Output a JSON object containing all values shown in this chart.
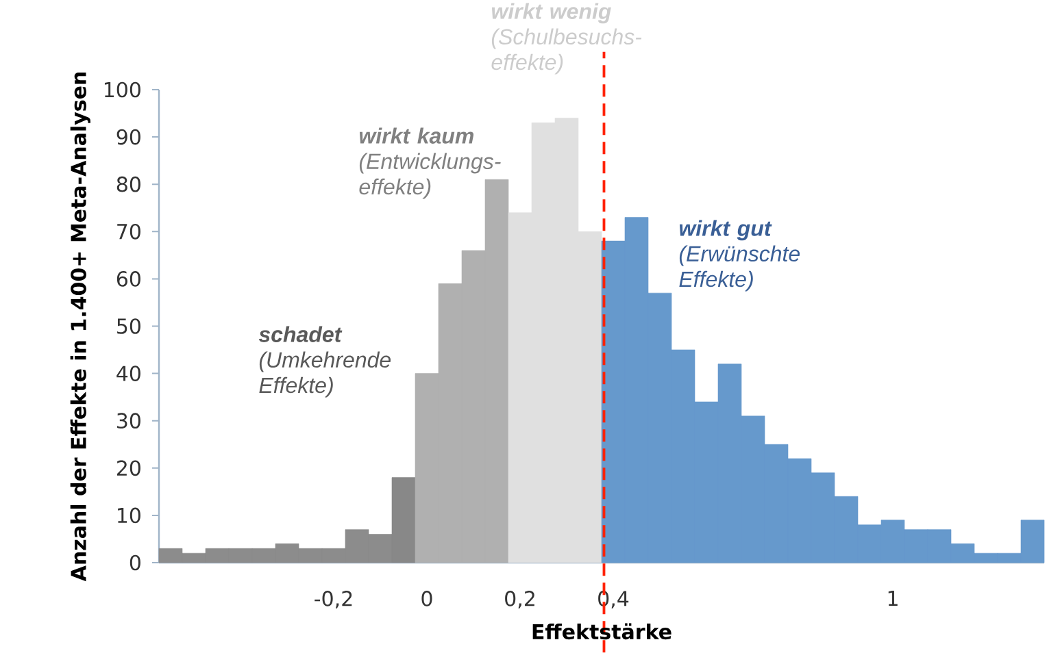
{
  "chart_data": {
    "type": "histogram",
    "xlabel": "Effektstärke",
    "ylabel": "Anzahl der Effekte in 1.400+ Meta-Analysen",
    "bins": [
      -0.575,
      -0.525,
      -0.475,
      -0.425,
      -0.375,
      -0.325,
      -0.275,
      -0.225,
      -0.175,
      -0.125,
      -0.075,
      -0.025,
      0.025,
      0.075,
      0.125,
      0.175,
      0.225,
      0.275,
      0.325,
      0.375,
      0.425,
      0.475,
      0.525,
      0.575,
      0.625,
      0.675,
      0.725,
      0.775,
      0.825,
      0.875,
      0.925,
      0.975,
      1.025,
      1.075,
      1.125,
      1.175,
      1.225,
      1.275,
      1.325
    ],
    "values": [
      3,
      2,
      3,
      3,
      3,
      4,
      3,
      3,
      7,
      6,
      18,
      40,
      59,
      66,
      81,
      74,
      93,
      94,
      70,
      68,
      73,
      57,
      45,
      34,
      42,
      31,
      25,
      22,
      19,
      14,
      8,
      9,
      7,
      7,
      4,
      2,
      2,
      9
    ],
    "colors": [
      "#8c8c8c",
      "#8c8c8c",
      "#8c8c8c",
      "#8c8c8c",
      "#8c8c8c",
      "#8c8c8c",
      "#8c8c8c",
      "#8c8c8c",
      "#8c8c8c",
      "#8c8c8c",
      "#888888",
      "#b0b0b0",
      "#b0b0b0",
      "#b0b0b0",
      "#b0b0b0",
      "#e0e0e0",
      "#e0e0e0",
      "#e0e0e0",
      "#e0e0e0",
      "#6699cc",
      "#6699cc",
      "#6699cc",
      "#6699cc",
      "#6699cc",
      "#6699cc",
      "#6699cc",
      "#6699cc",
      "#6699cc",
      "#6699cc",
      "#6699cc",
      "#6699cc",
      "#6699cc",
      "#6699cc",
      "#6699cc",
      "#6699cc",
      "#6699cc",
      "#6699cc",
      "#6699cc"
    ],
    "xlim": [
      -0.575,
      1.325
    ],
    "ylim": [
      0,
      100
    ],
    "xticks": [
      {
        "value": -0.2,
        "label": "-0,2"
      },
      {
        "value": 0,
        "label": "0"
      },
      {
        "value": 0.2,
        "label": "0,2"
      },
      {
        "value": 0.4,
        "label": "0,4"
      },
      {
        "value": 1,
        "label": "1"
      }
    ],
    "yticks": [
      0,
      10,
      20,
      30,
      40,
      50,
      60,
      70,
      80,
      90,
      100
    ],
    "ref_lines": [
      {
        "axis": "x",
        "value": 0.38,
        "color": "#ff2200",
        "line_style": "dashed"
      }
    ],
    "annotations": [
      "**wirkt wenig** (Schulbesuchs-effekte)",
      "**wirkt kaum** (Entwicklungs-effekte)",
      "**schadet** (Umkehrende Effekte)",
      "**wirkt gut** (Erwünschte Effekte)"
    ]
  }
}
